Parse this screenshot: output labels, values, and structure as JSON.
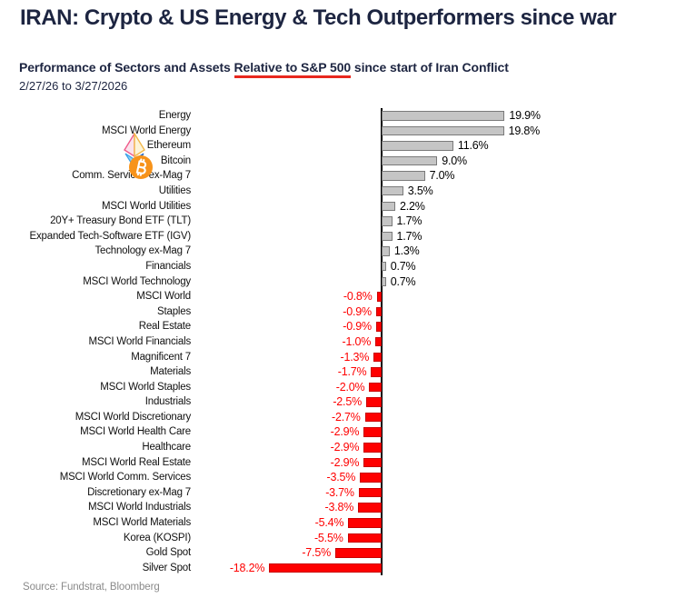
{
  "header": {
    "title": "IRAN: Crypto & US Energy & Tech Outperformers since war",
    "subtitle_prefix": "Performance of Sectors and Assets ",
    "subtitle_underlined": "Relative to S&P 500",
    "subtitle_suffix": " since start of Iran Conflict",
    "date_range": "2/27/26 to 3/27/2026"
  },
  "footer": {
    "source": "Source: Fundstrat, Bloomberg"
  },
  "colors": {
    "title_navy": "#1d2541",
    "positive_bar_fill": "#c5c5c5",
    "positive_bar_border": "#7a7a7a",
    "negative_bar_fill": "#fe0000",
    "negative_value_text": "#fe0000",
    "positive_value_text": "#000000",
    "red_underline": "#e8281e",
    "source_text": "#8a8a8a",
    "bitcoin_orange": "#f7931a"
  },
  "icons": {
    "ethereum": "ethereum-icon",
    "bitcoin": "bitcoin-icon"
  },
  "chart_data": {
    "type": "bar",
    "orientation": "horizontal",
    "title": "Performance of Sectors and Assets Relative to S&P 500 since start of Iran Conflict",
    "period": "2/27/26 to 3/27/2026",
    "unit": "percent relative to S&P 500",
    "value_format": "one_decimal_percent",
    "axis_zero_line": true,
    "grid": false,
    "legend": false,
    "categories": [
      "Energy",
      "MSCI World Energy",
      "Ethereum",
      "Bitcoin",
      "Comm. Services ex-Mag 7",
      "Utilities",
      "MSCI World Utilities",
      "20Y+ Treasury Bond ETF (TLT)",
      "Expanded Tech-Software ETF (IGV)",
      "Technology ex-Mag 7",
      "Financials",
      "MSCI World Technology",
      "MSCI World",
      "Staples",
      "Real Estate",
      "MSCI World Financials",
      "Magnificent 7",
      "Materials",
      "MSCI World Staples",
      "Industrials",
      "MSCI World Discretionary",
      "MSCI World Health Care",
      "Healthcare",
      "MSCI World Real Estate",
      "MSCI World Comm. Services",
      "Discretionary ex-Mag 7",
      "MSCI World Industrials",
      "MSCI World Materials",
      "Korea (KOSPI)",
      "Gold Spot",
      "Silver Spot"
    ],
    "values": [
      19.9,
      19.8,
      11.6,
      9.0,
      7.0,
      3.5,
      2.2,
      1.7,
      1.7,
      1.3,
      0.7,
      0.7,
      -0.8,
      -0.9,
      -0.9,
      -1.0,
      -1.3,
      -1.7,
      -2.0,
      -2.5,
      -2.7,
      -2.9,
      -2.9,
      -2.9,
      -3.5,
      -3.7,
      -3.8,
      -5.4,
      -5.5,
      -7.5,
      -18.2
    ],
    "positive_color": "#c5c5c5",
    "negative_color": "#fe0000",
    "icon_rows": {
      "2": "ethereum-icon",
      "3": "bitcoin-icon"
    }
  }
}
